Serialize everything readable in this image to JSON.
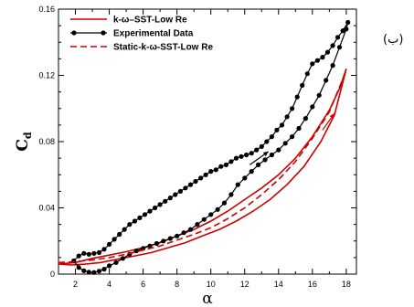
{
  "panel_label": "(ب)",
  "chart_data": {
    "type": "line",
    "xlabel": "α",
    "ylabel": "Cd",
    "xlim": [
      1,
      18.6
    ],
    "ylim": [
      0,
      0.16
    ],
    "xticks": [
      2,
      4,
      6,
      8,
      10,
      12,
      14,
      16,
      18
    ],
    "yticks": [
      0,
      0.04,
      0.08,
      0.12,
      0.16
    ],
    "ytick_labels": [
      "0",
      "0.04",
      "0.08",
      "0.12",
      "0.16"
    ],
    "grid": false,
    "legend_position": "top-left",
    "series": [
      {
        "name": "k-ω–SST-Low Re",
        "color": "#cc0000",
        "style": "solid",
        "points": [
          [
            1.0,
            0.006
          ],
          [
            1.8,
            0.0055
          ],
          [
            2.6,
            0.006
          ],
          [
            3.5,
            0.007
          ],
          [
            4.5,
            0.009
          ],
          [
            5.5,
            0.011
          ],
          [
            6.5,
            0.013
          ],
          [
            7.5,
            0.016
          ],
          [
            8.5,
            0.019
          ],
          [
            9.5,
            0.023
          ],
          [
            10.5,
            0.027
          ],
          [
            11.5,
            0.032
          ],
          [
            12.5,
            0.038
          ],
          [
            13.5,
            0.045
          ],
          [
            14.5,
            0.054
          ],
          [
            15.5,
            0.065
          ],
          [
            16.5,
            0.08
          ],
          [
            17.3,
            0.096
          ],
          [
            18.0,
            0.124
          ],
          [
            17.6,
            0.112
          ],
          [
            17.0,
            0.099
          ],
          [
            16.0,
            0.083
          ],
          [
            15.0,
            0.07
          ],
          [
            14.0,
            0.06
          ],
          [
            13.0,
            0.052
          ],
          [
            12.0,
            0.045
          ],
          [
            11.0,
            0.038
          ],
          [
            10.0,
            0.032
          ],
          [
            9.0,
            0.027
          ],
          [
            8.0,
            0.023
          ],
          [
            7.0,
            0.019
          ],
          [
            6.0,
            0.016
          ],
          [
            5.0,
            0.0135
          ],
          [
            4.0,
            0.0115
          ],
          [
            3.0,
            0.0095
          ],
          [
            2.0,
            0.007
          ],
          [
            1.0,
            0.006
          ]
        ]
      },
      {
        "name": "Experimental Data",
        "color": "#000000",
        "style": "solid-markers",
        "points": [
          [
            1.9,
            0.008
          ],
          [
            2.2,
            0.004
          ],
          [
            2.5,
            0.002
          ],
          [
            2.8,
            0.0012
          ],
          [
            3.1,
            0.001
          ],
          [
            3.4,
            0.0018
          ],
          [
            3.7,
            0.003
          ],
          [
            4.0,
            0.005
          ],
          [
            4.4,
            0.007
          ],
          [
            4.8,
            0.0095
          ],
          [
            5.2,
            0.012
          ],
          [
            5.6,
            0.014
          ],
          [
            6.0,
            0.0155
          ],
          [
            6.4,
            0.017
          ],
          [
            6.8,
            0.0185
          ],
          [
            7.2,
            0.02
          ],
          [
            7.6,
            0.0215
          ],
          [
            8.0,
            0.023
          ],
          [
            8.4,
            0.025
          ],
          [
            8.8,
            0.027
          ],
          [
            9.2,
            0.03
          ],
          [
            9.6,
            0.033
          ],
          [
            10.0,
            0.036
          ],
          [
            10.4,
            0.039
          ],
          [
            10.8,
            0.043
          ],
          [
            11.2,
            0.048
          ],
          [
            11.6,
            0.054
          ],
          [
            12.0,
            0.058
          ],
          [
            12.4,
            0.062
          ],
          [
            12.8,
            0.066
          ],
          [
            13.2,
            0.069
          ],
          [
            13.6,
            0.072
          ],
          [
            14.0,
            0.075
          ],
          [
            14.4,
            0.079
          ],
          [
            14.8,
            0.083
          ],
          [
            15.2,
            0.088
          ],
          [
            15.6,
            0.094
          ],
          [
            16.0,
            0.101
          ],
          [
            16.4,
            0.108
          ],
          [
            16.8,
            0.117
          ],
          [
            17.2,
            0.126
          ],
          [
            17.6,
            0.137
          ],
          [
            18.0,
            0.148
          ],
          [
            18.1,
            0.152
          ],
          [
            17.8,
            0.147
          ],
          [
            17.5,
            0.143
          ],
          [
            17.2,
            0.138
          ],
          [
            16.9,
            0.134
          ],
          [
            16.6,
            0.131
          ],
          [
            16.3,
            0.129
          ],
          [
            16.0,
            0.127
          ],
          [
            15.7,
            0.121
          ],
          [
            15.4,
            0.114
          ],
          [
            15.1,
            0.107
          ],
          [
            14.8,
            0.1
          ],
          [
            14.5,
            0.095
          ],
          [
            14.2,
            0.09
          ],
          [
            13.9,
            0.087
          ],
          [
            13.6,
            0.083
          ],
          [
            13.3,
            0.08
          ],
          [
            13.0,
            0.077
          ],
          [
            12.7,
            0.075
          ],
          [
            12.4,
            0.073
          ],
          [
            12.1,
            0.072
          ],
          [
            11.8,
            0.071
          ],
          [
            11.5,
            0.07
          ],
          [
            11.2,
            0.068
          ],
          [
            10.9,
            0.066
          ],
          [
            10.6,
            0.065
          ],
          [
            10.3,
            0.063
          ],
          [
            10.0,
            0.062
          ],
          [
            9.7,
            0.06
          ],
          [
            9.4,
            0.058
          ],
          [
            9.1,
            0.056
          ],
          [
            8.8,
            0.054
          ],
          [
            8.5,
            0.052
          ],
          [
            8.2,
            0.05
          ],
          [
            7.9,
            0.048
          ],
          [
            7.6,
            0.046
          ],
          [
            7.3,
            0.044
          ],
          [
            7.0,
            0.042
          ],
          [
            6.7,
            0.04
          ],
          [
            6.4,
            0.038
          ],
          [
            6.1,
            0.036
          ],
          [
            5.8,
            0.034
          ],
          [
            5.5,
            0.032
          ],
          [
            5.2,
            0.03
          ],
          [
            4.9,
            0.027
          ],
          [
            4.6,
            0.024
          ],
          [
            4.3,
            0.021
          ],
          [
            4.0,
            0.018
          ],
          [
            3.7,
            0.015
          ],
          [
            3.4,
            0.013
          ],
          [
            3.1,
            0.0125
          ],
          [
            2.8,
            0.012
          ],
          [
            2.5,
            0.0125
          ],
          [
            2.2,
            0.011
          ],
          [
            1.9,
            0.008
          ]
        ]
      },
      {
        "name": "Static-k-ω-SST-Low Re",
        "color": "#cc0000",
        "style": "dashed",
        "points": [
          [
            1.0,
            0.007
          ],
          [
            2.0,
            0.0075
          ],
          [
            3.0,
            0.0085
          ],
          [
            4.0,
            0.01
          ],
          [
            5.0,
            0.012
          ],
          [
            6.0,
            0.0145
          ],
          [
            7.0,
            0.017
          ],
          [
            8.0,
            0.0205
          ],
          [
            9.0,
            0.024
          ],
          [
            10.0,
            0.028
          ],
          [
            11.0,
            0.0335
          ],
          [
            12.0,
            0.04
          ],
          [
            13.0,
            0.048
          ],
          [
            14.0,
            0.057
          ],
          [
            15.0,
            0.068
          ],
          [
            16.0,
            0.082
          ],
          [
            17.0,
            0.098
          ],
          [
            18.0,
            0.123
          ]
        ]
      }
    ],
    "direction_arrows": [
      {
        "from": [
          12.3,
          0.066
        ],
        "to": [
          13.4,
          0.074
        ],
        "color": "#000000"
      },
      {
        "from": [
          16.6,
          0.087
        ],
        "to": [
          17.3,
          0.097
        ],
        "color": "#cc0000"
      }
    ]
  }
}
